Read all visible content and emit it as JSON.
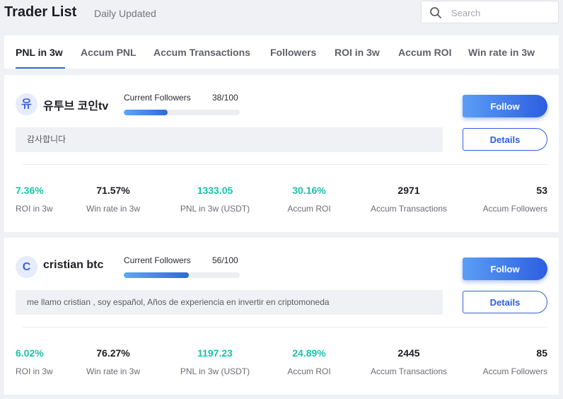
{
  "header": {
    "title": "Trader List",
    "subtitle": "Daily Updated",
    "search_placeholder": "Search",
    "search_icon": "search-icon"
  },
  "tabs": [
    {
      "label": "PNL in 3w",
      "active": true
    },
    {
      "label": "Accum PNL",
      "active": false
    },
    {
      "label": "Accum Transactions",
      "active": false
    },
    {
      "label": "Followers",
      "active": false
    },
    {
      "label": "ROI in 3w",
      "active": false
    },
    {
      "label": "Accum ROI",
      "active": false
    },
    {
      "label": "Win rate in 3w",
      "active": false
    }
  ],
  "labels": {
    "current_followers": "Current Followers",
    "follow": "Follow",
    "details": "Details",
    "roi_3w": "ROI in 3w",
    "win_rate_3w": "Win rate in 3w",
    "pnl_3w": "PNL in 3w (USDT)",
    "accum_roi": "Accum ROI",
    "accum_transactions": "Accum Transactions",
    "accum_followers": "Accum Followers"
  },
  "colors": {
    "accent": "#2d5ee0",
    "positive": "#18c3a8"
  },
  "traders": [
    {
      "avatar": "유",
      "name": "유투브 코인tv",
      "followers": "38/100",
      "followers_fraction": 0.38,
      "bio": "감사합니다",
      "roi_3w": "7.36%",
      "win_rate_3w": "71.57%",
      "pnl_3w": "1333.05",
      "accum_roi": "30.16%",
      "accum_transactions": "2971",
      "accum_followers": "53"
    },
    {
      "avatar": "C",
      "name": "cristian btc",
      "followers": "56/100",
      "followers_fraction": 0.56,
      "bio": "me llamo cristian , soy español, Años de experiencia en invertir en criptomoneda",
      "roi_3w": "6.02%",
      "win_rate_3w": "76.27%",
      "pnl_3w": "1197.23",
      "accum_roi": "24.89%",
      "accum_transactions": "2445",
      "accum_followers": "85"
    }
  ]
}
